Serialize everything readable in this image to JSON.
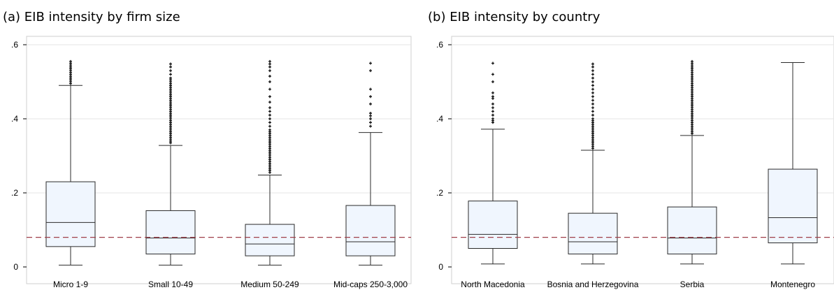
{
  "colors": {
    "box_fill": "#f0f6fe",
    "box_stroke": "#2b2b2b",
    "grid": "#e6e6e6",
    "reference_line": "#a0404a",
    "frame": "#cfcfcf"
  },
  "chart_data": [
    {
      "type": "box",
      "title": "(a) EIB intensity by firm size",
      "xlabel": "",
      "ylabel": "",
      "ylim": [
        0,
        0.6
      ],
      "yticks": [
        0,
        0.2,
        0.4,
        0.6
      ],
      "ytick_labels": [
        "0",
        ".2",
        ".4",
        ".6"
      ],
      "grid": true,
      "reference_line": 0.08,
      "categories": [
        "Micro 1-9",
        "Small 10-49",
        "Medium 50-249",
        "Mid-caps 250-3,000"
      ],
      "boxes": [
        {
          "min": 0.005,
          "q1": 0.055,
          "median": 0.12,
          "q3": 0.23,
          "max": 0.49,
          "outliers": [
            0.495,
            0.5,
            0.505,
            0.51,
            0.515,
            0.52,
            0.525,
            0.53,
            0.535,
            0.54,
            0.545,
            0.55,
            0.555
          ]
        },
        {
          "min": 0.005,
          "q1": 0.035,
          "median": 0.078,
          "q3": 0.152,
          "max": 0.328,
          "outliers": [
            0.335,
            0.34,
            0.345,
            0.35,
            0.355,
            0.36,
            0.365,
            0.37,
            0.375,
            0.38,
            0.385,
            0.39,
            0.395,
            0.4,
            0.405,
            0.41,
            0.415,
            0.42,
            0.425,
            0.43,
            0.435,
            0.44,
            0.445,
            0.45,
            0.455,
            0.46,
            0.465,
            0.47,
            0.475,
            0.48,
            0.485,
            0.49,
            0.495,
            0.5,
            0.505,
            0.51,
            0.52,
            0.53,
            0.54,
            0.548
          ]
        },
        {
          "min": 0.005,
          "q1": 0.03,
          "median": 0.062,
          "q3": 0.115,
          "max": 0.248,
          "outliers": [
            0.255,
            0.26,
            0.265,
            0.27,
            0.275,
            0.28,
            0.285,
            0.29,
            0.295,
            0.3,
            0.305,
            0.31,
            0.315,
            0.32,
            0.325,
            0.33,
            0.335,
            0.34,
            0.345,
            0.35,
            0.355,
            0.36,
            0.365,
            0.37,
            0.38,
            0.39,
            0.4,
            0.41,
            0.42,
            0.43,
            0.445,
            0.46,
            0.48,
            0.5,
            0.515,
            0.53,
            0.54,
            0.548,
            0.555
          ]
        },
        {
          "min": 0.005,
          "q1": 0.03,
          "median": 0.068,
          "q3": 0.166,
          "max": 0.363,
          "outliers": [
            0.38,
            0.39,
            0.4,
            0.408,
            0.415,
            0.44,
            0.46,
            0.48,
            0.53,
            0.55
          ]
        }
      ]
    },
    {
      "type": "box",
      "title": "(b) EIB intensity by country",
      "xlabel": "",
      "ylabel": "",
      "ylim": [
        0,
        0.6
      ],
      "yticks": [
        0,
        0.2,
        0.4,
        0.6
      ],
      "ytick_labels": [
        "0",
        ".2",
        ".4",
        ".6"
      ],
      "grid": true,
      "reference_line": 0.08,
      "categories": [
        "North Macedonia",
        "Bosnia and Herzegovina",
        "Serbia",
        "Montenegro"
      ],
      "boxes": [
        {
          "min": 0.008,
          "q1": 0.05,
          "median": 0.088,
          "q3": 0.178,
          "max": 0.372,
          "outliers": [
            0.39,
            0.395,
            0.4,
            0.41,
            0.42,
            0.43,
            0.44,
            0.455,
            0.46,
            0.47,
            0.5,
            0.52,
            0.55
          ]
        },
        {
          "min": 0.008,
          "q1": 0.035,
          "median": 0.068,
          "q3": 0.145,
          "max": 0.315,
          "outliers": [
            0.32,
            0.325,
            0.33,
            0.335,
            0.34,
            0.345,
            0.35,
            0.355,
            0.36,
            0.365,
            0.37,
            0.375,
            0.38,
            0.385,
            0.39,
            0.395,
            0.4,
            0.41,
            0.42,
            0.43,
            0.44,
            0.45,
            0.46,
            0.47,
            0.48,
            0.49,
            0.5,
            0.51,
            0.52,
            0.53,
            0.54,
            0.548
          ]
        },
        {
          "min": 0.008,
          "q1": 0.035,
          "median": 0.078,
          "q3": 0.162,
          "max": 0.355,
          "outliers": [
            0.36,
            0.365,
            0.37,
            0.375,
            0.38,
            0.385,
            0.39,
            0.395,
            0.4,
            0.405,
            0.41,
            0.415,
            0.42,
            0.425,
            0.43,
            0.435,
            0.44,
            0.445,
            0.45,
            0.455,
            0.46,
            0.465,
            0.47,
            0.475,
            0.48,
            0.485,
            0.49,
            0.495,
            0.5,
            0.505,
            0.51,
            0.515,
            0.52,
            0.525,
            0.53,
            0.535,
            0.54,
            0.545,
            0.55,
            0.555
          ]
        },
        {
          "min": 0.008,
          "q1": 0.065,
          "median": 0.133,
          "q3": 0.264,
          "max": 0.552,
          "outliers": []
        }
      ]
    }
  ]
}
